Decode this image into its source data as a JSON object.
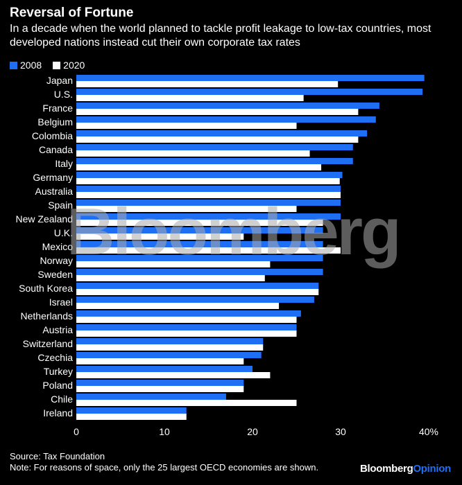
{
  "header": {
    "title": "Reversal of Fortune",
    "subtitle": "In a decade when the world planned to tackle profit leakage to low-tax countries, most developed nations instead cut their own corporate tax rates"
  },
  "colors": {
    "series_2008": "#1f6ff5",
    "series_2020": "#ffffff",
    "background": "#000000"
  },
  "chart_data": {
    "type": "bar",
    "orientation": "horizontal",
    "categories": [
      "Japan",
      "U.S.",
      "France",
      "Belgium",
      "Colombia",
      "Canada",
      "Italy",
      "Germany",
      "Australia",
      "Spain",
      "New Zealand",
      "U.K.",
      "Mexico",
      "Norway",
      "Sweden",
      "South Korea",
      "Israel",
      "Netherlands",
      "Austria",
      "Switzerland",
      "Czechia",
      "Turkey",
      "Poland",
      "Chile",
      "Ireland"
    ],
    "series": [
      {
        "name": "2008",
        "values": [
          39.5,
          39.3,
          34.4,
          34.0,
          33.0,
          31.4,
          31.4,
          30.2,
          30.0,
          30.0,
          30.0,
          28.0,
          28.0,
          28.0,
          28.0,
          27.5,
          27.0,
          25.5,
          25.0,
          21.2,
          21.0,
          20.0,
          19.0,
          17.0,
          12.5
        ]
      },
      {
        "name": "2020",
        "values": [
          29.7,
          25.8,
          32.0,
          25.0,
          32.0,
          26.5,
          27.8,
          29.9,
          30.0,
          25.0,
          28.0,
          19.0,
          30.0,
          22.0,
          21.4,
          27.5,
          23.0,
          25.0,
          25.0,
          21.2,
          19.0,
          22.0,
          19.0,
          25.0,
          12.5
        ]
      }
    ],
    "xlim": [
      0,
      40
    ],
    "xticks": [
      0,
      10,
      20,
      30,
      40
    ],
    "xtick_labels": [
      "0",
      "10",
      "20",
      "30",
      "40%"
    ],
    "legend_position": "top-left",
    "grid": false,
    "watermark": "Bloomberg"
  },
  "footer": {
    "source": "Source: Tax Foundation",
    "note": "Note: For reasons of space, only the 25 largest OECD economies are shown.",
    "brand_main": "Bloomberg",
    "brand_sub": "Opinion"
  }
}
